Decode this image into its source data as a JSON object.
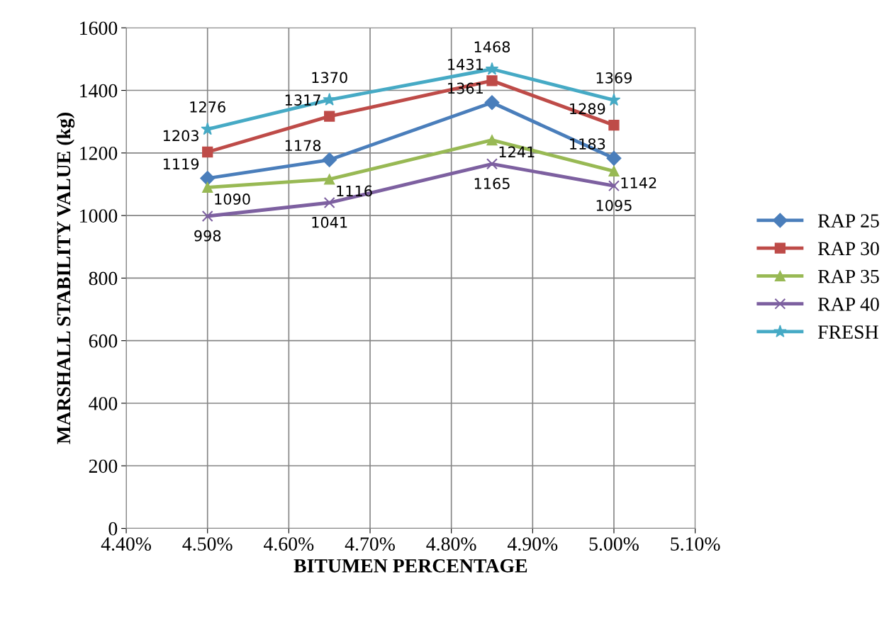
{
  "chart_data": {
    "type": "line",
    "xlabel": "BITUMEN PERCENTAGE",
    "ylabel": "MARSHALL STABILITY VALUE (kg)",
    "x": [
      4.5,
      4.65,
      4.85,
      5.0
    ],
    "series": [
      {
        "name": "RAP 25",
        "color": "#4a7ebb",
        "marker": "diamond",
        "values": [
          1119,
          1178,
          1361,
          1183
        ]
      },
      {
        "name": "RAP 30",
        "color": "#be4b48",
        "marker": "square",
        "values": [
          1203,
          1317,
          1431,
          1289
        ]
      },
      {
        "name": "RAP 35",
        "color": "#98b954",
        "marker": "triangle",
        "values": [
          1090,
          1116,
          1241,
          1142
        ]
      },
      {
        "name": "RAP 40",
        "color": "#7d60a0",
        "marker": "cross",
        "values": [
          998,
          1041,
          1165,
          1095
        ]
      },
      {
        "name": "FRESH",
        "color": "#46aac5",
        "marker": "star",
        "values": [
          1276,
          1370,
          1468,
          1369
        ]
      }
    ],
    "xlim": [
      4.4,
      5.1
    ],
    "xticks": [
      {
        "value": 4.4,
        "label": "4.40%"
      },
      {
        "value": 4.5,
        "label": "4.50%"
      },
      {
        "value": 4.6,
        "label": "4.60%"
      },
      {
        "value": 4.7,
        "label": "4.70%"
      },
      {
        "value": 4.8,
        "label": "4.80%"
      },
      {
        "value": 4.9,
        "label": "4.90%"
      },
      {
        "value": 5.0,
        "label": "5.00%"
      },
      {
        "value": 5.1,
        "label": "5.10%"
      }
    ],
    "ylim": [
      0,
      1600
    ],
    "yticks": [
      0,
      200,
      400,
      600,
      800,
      1000,
      1200,
      1400,
      1600
    ],
    "grid": true,
    "legend": "right",
    "data_labels": true,
    "line_style": "solid"
  }
}
